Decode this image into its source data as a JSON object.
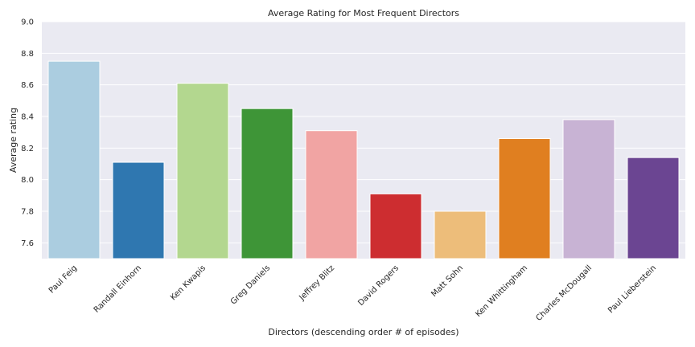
{
  "chart_data": {
    "type": "bar",
    "title": "Average Rating for Most Frequent Directors",
    "xlabel": "Directors (descending order # of episodes)",
    "ylabel": "Average rating",
    "ylim": [
      7.5,
      9.0
    ],
    "yticks": [
      "7.6",
      "7.8",
      "8.0",
      "8.2",
      "8.4",
      "8.6",
      "8.8",
      "9.0"
    ],
    "grid": true,
    "categories": [
      "Paul Feig",
      "Randall Einhorn",
      "Ken Kwapis",
      "Greg Daniels",
      "Jeffrey Blitz",
      "David Rogers",
      "Matt Sohn",
      "Ken Whittingham",
      "Charles McDougall",
      "Paul Lieberstein"
    ],
    "values": [
      8.75,
      8.11,
      8.61,
      8.45,
      8.31,
      7.91,
      7.8,
      8.26,
      8.38,
      8.14
    ],
    "colors": [
      "#abcde0",
      "#2f77b0",
      "#b3d78f",
      "#3e9537",
      "#f1a4a3",
      "#cd2d30",
      "#edbd7a",
      "#e07f20",
      "#c8b3d4",
      "#6b4592"
    ],
    "plot_background": "#eaeaf2",
    "grid_color": "#ffffff"
  }
}
